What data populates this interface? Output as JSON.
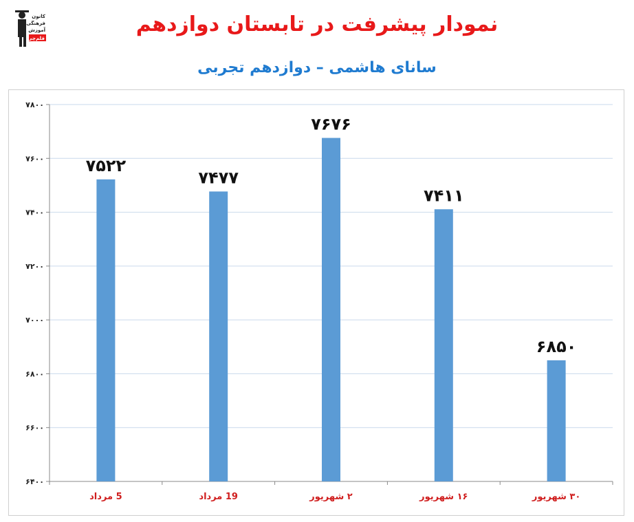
{
  "header": {
    "title": "نمودار پیشرفت در تابستان دوازدهم",
    "subtitle": "سانای هاشمی – دوازدهم تجربی"
  },
  "logo": {
    "text_lines": [
      "کانون",
      "فرهنگی",
      "آموزش",
      "قلم‌چی"
    ]
  },
  "colors": {
    "title": "#e8191a",
    "subtitle": "#1f7bd0",
    "bar": "#5b9bd5",
    "category_label": "#d01f1f",
    "grid": "#c9d9ec"
  },
  "chart_data": {
    "type": "bar",
    "title": "",
    "xlabel": "",
    "ylabel": "",
    "ylim": [
      6400,
      7800
    ],
    "yticks": [
      6400,
      6600,
      6800,
      7000,
      7200,
      7400,
      7600,
      7800
    ],
    "ytick_labels": [
      "۶۴۰۰",
      "۶۶۰۰",
      "۶۸۰۰",
      "۷۰۰۰",
      "۷۲۰۰",
      "۷۴۰۰",
      "۷۶۰۰",
      "۷۸۰۰"
    ],
    "categories": [
      "5 مرداد",
      "19 مرداد",
      "2 شهریور",
      "16 شهریور",
      "30 شهریور"
    ],
    "category_labels": [
      "5 مرداد",
      "19 مرداد",
      "۲ شهریور",
      "۱۶ شهریور",
      "۳۰ شهریور"
    ],
    "values": [
      7522,
      7477,
      7676,
      7411,
      6850
    ],
    "value_labels": [
      "۷۵۲۲",
      "۷۴۷۷",
      "۷۶۷۶",
      "۷۴۱۱",
      "۶۸۵۰"
    ],
    "grid": true,
    "legend": "none"
  }
}
